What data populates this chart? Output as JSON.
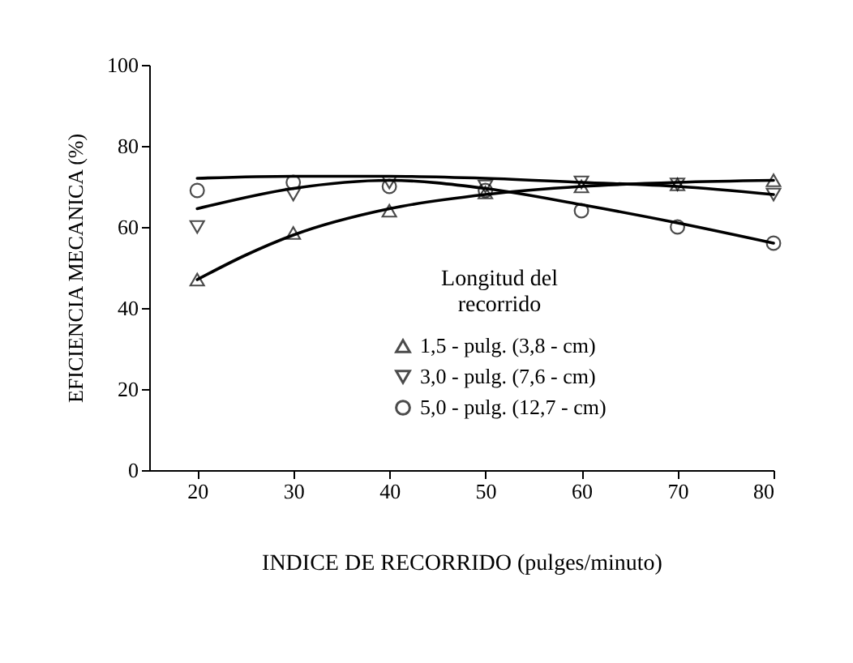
{
  "chart_data": {
    "type": "scatter",
    "xlabel": "INDICE DE RECORRIDO (pulges/minuto)",
    "ylabel": "EFICIENCIA MECANICA (%)",
    "legend_title": "Longitud del recorrido",
    "legend": "right",
    "grid": false,
    "xlim": [
      15,
      80
    ],
    "xticks": [
      20,
      30,
      40,
      50,
      60,
      70,
      80
    ],
    "ylim": [
      0,
      100
    ],
    "yticks": [
      0,
      20,
      40,
      60,
      80,
      100
    ],
    "series": [
      {
        "name": "1,5 - pulg. (3,8 - cm)",
        "color": "#000000",
        "marker": "triangle",
        "x": [
          20,
          30,
          40,
          50,
          60,
          70,
          80
        ],
        "values": [
          47,
          58.5,
          64,
          68.5,
          70,
          70.5,
          71.5
        ]
      },
      {
        "name": "3,0 - pulg. (7,6 - cm)",
        "color": "#000000",
        "marker": "triangle-down",
        "x": [
          20,
          30,
          40,
          50,
          60,
          70,
          80
        ],
        "values": [
          60,
          68,
          71,
          70,
          71,
          70.5,
          68
        ]
      },
      {
        "name": "5,0 - pulg. (12,7 - cm)",
        "color": "#000000",
        "marker": "circle",
        "x": [
          20,
          30,
          40,
          50,
          60,
          70,
          80
        ],
        "values": [
          69,
          71,
          70,
          69,
          64,
          60,
          56
        ]
      },
      {
        "type": "line",
        "color": "#000000",
        "marker": "none",
        "x": [
          20,
          25,
          30,
          40,
          50,
          60,
          70,
          80
        ],
        "values": [
          47,
          53,
          58,
          64.5,
          68,
          70,
          71,
          71.5
        ]
      },
      {
        "type": "line",
        "color": "#000000",
        "marker": "none",
        "x": [
          20,
          30,
          40,
          50,
          60,
          70,
          80
        ],
        "values": [
          72,
          72.5,
          72.5,
          72,
          71,
          70,
          68
        ]
      },
      {
        "type": "line",
        "color": "#000000",
        "marker": "none",
        "x": [
          20,
          30,
          40,
          50,
          60,
          70,
          80
        ],
        "values": [
          64.5,
          69.5,
          71.5,
          69.5,
          65.5,
          61,
          56
        ]
      }
    ]
  }
}
